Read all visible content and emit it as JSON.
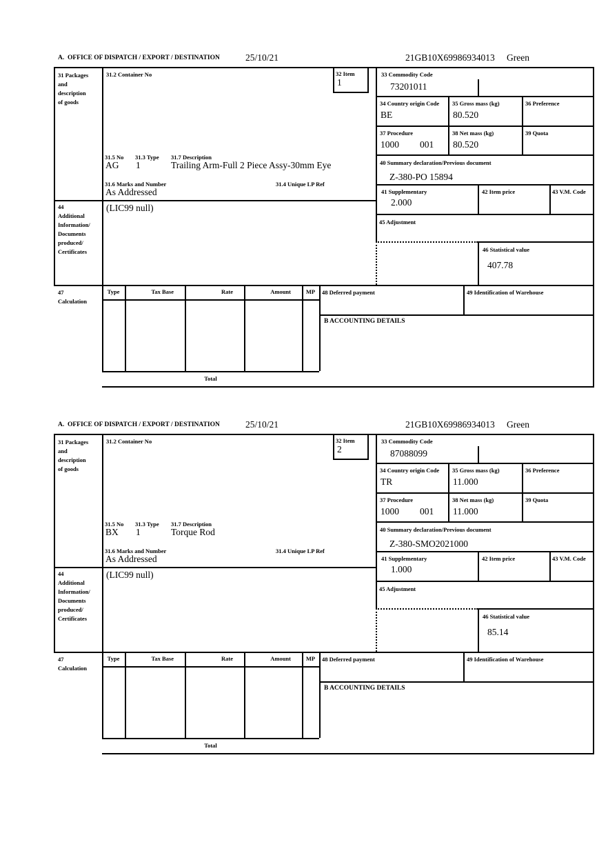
{
  "page": {
    "date": "25/10/21",
    "mrn": "21GB10X69986934013",
    "routing": "Green",
    "ink_color": "#000000",
    "paper_color": "#ffffff"
  },
  "labels": {
    "header_a": "A.  OFFICE OF DISPATCH / EXPORT / DESTINATION",
    "box31_lines": [
      "31 Packages",
      "and",
      "description",
      "of goods"
    ],
    "box31_2": "31.2 Container No",
    "box32": "32 Item",
    "box33": "33 Commodity Code",
    "box34": "34 Country origin Code",
    "box35": "35 Gross mass (kg)",
    "box36": "36 Preference",
    "box37": "37 Procedure",
    "box38": "38 Net mass (kg)",
    "box39": "39 Quota",
    "box40": "40 Summary declaration/Previous document",
    "box41": "41 Supplementary",
    "box42": "42 Item price",
    "box43": "43 V.M. Code",
    "box44_lines": [
      "44",
      "Additional",
      "Information/",
      "Documents",
      "produced/",
      "Certificates"
    ],
    "box45": "45 Adjustment",
    "box46": "46 Statistical value",
    "box47_lines": [
      "47",
      "Calculation"
    ],
    "box31_5": "31.5 No",
    "box31_3": "31.3 Type",
    "box31_7": "31.7 Description",
    "box31_6": "31.6 Marks and Number",
    "box31_4": "31.4 Unique LP Ref",
    "box48": "48 Deferred payment",
    "box49": "49 Identification of Warehouse",
    "accounting": "B ACCOUNTING DETAILS",
    "total": "Total",
    "calc_headers": [
      "Type",
      "Tax Base",
      "Rate",
      "Amount",
      "MP"
    ]
  },
  "items": [
    {
      "item_no": "1",
      "commodity_code": "73201011",
      "country_origin": "BE",
      "gross_mass": "80.520",
      "preference": "",
      "procedure_1": "1000",
      "procedure_2": "001",
      "net_mass": "80.520",
      "quota": "",
      "summary_declaration": "Z-380-PO 15894",
      "supplementary": "2.000",
      "item_price": "",
      "vm_code": "",
      "package_no": "AG",
      "package_type": "1",
      "description": "Trailing Arm-Full 2 Piece Assy-30mm Eye",
      "marks": "As Addressed",
      "unique_lp_ref": "",
      "additional_info": "(LIC99 null)",
      "adjustment": "",
      "statistical_value": "407.78",
      "deferred_payment": "",
      "warehouse_id": ""
    },
    {
      "item_no": "2",
      "commodity_code": "87088099",
      "country_origin": "TR",
      "gross_mass": "11.000",
      "preference": "",
      "procedure_1": "1000",
      "procedure_2": "001",
      "net_mass": "11.000",
      "quota": "",
      "summary_declaration": "Z-380-SMO2021000",
      "supplementary": "1.000",
      "item_price": "",
      "vm_code": "",
      "package_no": "BX",
      "package_type": "1",
      "description": "Torque Rod",
      "marks": "As Addressed",
      "unique_lp_ref": "",
      "additional_info": "(LIC99 null)",
      "adjustment": "",
      "statistical_value": "85.14",
      "deferred_payment": "",
      "warehouse_id": ""
    }
  ]
}
